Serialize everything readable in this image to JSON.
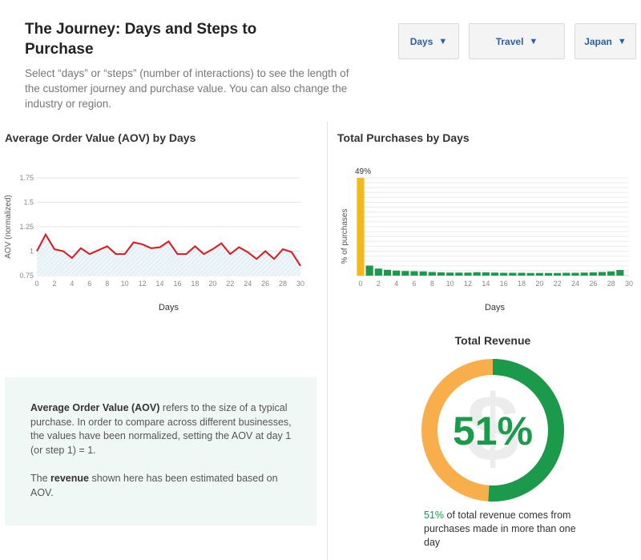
{
  "header": {
    "title": "The Journey: Days and Steps to Purchase",
    "description": "Select “days” or “steps” (number of interactions) to see the length of the customer journey and purchase value. You can also change the industry or region."
  },
  "filters": {
    "metric": "Days",
    "industry": "Travel",
    "region": "Japan",
    "caret": "▼"
  },
  "colors": {
    "aov_line": "#e0141e",
    "aov_fill": "#d4e7ee",
    "day0_bar": "#f2b81c",
    "other_bars": "#1a9a4a",
    "revenue_multi_day": "#1a9a4a",
    "revenue_single_day": "#f9ae4c"
  },
  "info": {
    "aov_term": "Average Order Value (AOV)",
    "aov_text": " refers to the size of a typical purchase. In order to compare across different businesses, the values have been normalized, setting the AOV at day 1 (or step 1) = 1.",
    "rev_prefix": "The ",
    "rev_term": "revenue",
    "rev_text": " shown here has been estimated based on AOV."
  },
  "revenue": {
    "title": "Total Revenue",
    "value": "51%",
    "fraction": 0.51,
    "icon": "dollar-sign-icon",
    "caption_pct": "51%",
    "caption_text": " of total revenue comes from purchases made in more than one day"
  },
  "chart_data": [
    {
      "type": "area",
      "title": "Average Order Value (AOV) by Days",
      "xlabel": "Days",
      "ylabel": "AOV (normalized)",
      "xlim": [
        0,
        30
      ],
      "ylim": [
        0.75,
        1.75
      ],
      "yticks": [
        0.75,
        1,
        1.25,
        1.5,
        1.75
      ],
      "ytick_labels": [
        "0.75",
        "1",
        "1.25",
        "1.5",
        "1.75"
      ],
      "xticks": [
        0,
        2,
        4,
        6,
        8,
        10,
        12,
        14,
        16,
        18,
        20,
        22,
        24,
        26,
        28,
        30
      ],
      "grid": true,
      "x": [
        0,
        1,
        2,
        3,
        4,
        5,
        6,
        7,
        8,
        9,
        10,
        11,
        12,
        13,
        14,
        15,
        16,
        17,
        18,
        19,
        20,
        21,
        22,
        23,
        24,
        25,
        26,
        27,
        28,
        29,
        30
      ],
      "values": [
        1.0,
        1.17,
        1.02,
        1.0,
        0.93,
        1.03,
        0.97,
        1.01,
        1.05,
        0.97,
        0.97,
        1.09,
        1.07,
        1.03,
        1.04,
        1.1,
        0.97,
        0.97,
        1.05,
        0.97,
        1.02,
        1.08,
        0.97,
        1.04,
        0.99,
        0.92,
        1.0,
        0.92,
        1.02,
        0.99,
        0.85
      ]
    },
    {
      "type": "bar",
      "title": "Total Purchases by Days",
      "xlabel": "Days",
      "ylabel": "% of purchases",
      "xlim": [
        0,
        30
      ],
      "ylim": [
        0,
        49
      ],
      "xticks": [
        0,
        2,
        4,
        6,
        8,
        10,
        12,
        14,
        16,
        18,
        20,
        22,
        24,
        26,
        28,
        30
      ],
      "grid": true,
      "data_label": "49%",
      "x": [
        0,
        1,
        2,
        3,
        4,
        5,
        6,
        7,
        8,
        9,
        10,
        11,
        12,
        13,
        14,
        15,
        16,
        17,
        18,
        19,
        20,
        21,
        22,
        23,
        24,
        25,
        26,
        27,
        28,
        29
      ],
      "values": [
        49,
        5.0,
        3.5,
        2.9,
        2.5,
        2.3,
        2.2,
        2.1,
        1.8,
        1.6,
        1.5,
        1.5,
        1.5,
        1.7,
        1.6,
        1.5,
        1.4,
        1.4,
        1.4,
        1.3,
        1.3,
        1.3,
        1.3,
        1.4,
        1.4,
        1.5,
        1.6,
        1.8,
        2.1,
        2.8
      ]
    }
  ]
}
